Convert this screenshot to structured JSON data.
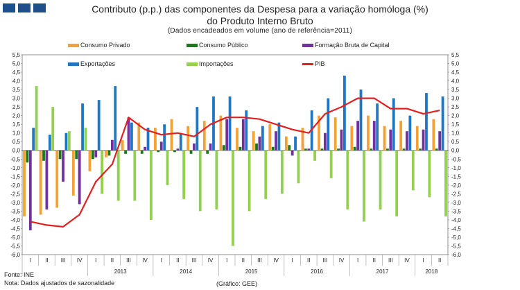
{
  "header": {
    "title_line1": "Contributo (p.p.) das componentes da Despesa para a variação homóloga (%)",
    "title_line2": "do Produto Interno Bruto",
    "subtitle": "(Dados encadeados em volume (ano de referência=2011)"
  },
  "footer": {
    "source": "Fonte: INE",
    "note": "Nota: Dados ajustados de sazonalidade",
    "chart_credit": "(Gráfico: GEE)"
  },
  "chart_data": {
    "type": "bar",
    "title": "Contributo (p.p.) das componentes da Despesa para a variação homóloga (%)",
    "ylim": [
      -6.0,
      5.5
    ],
    "ytick_step": 0.5,
    "quarter_labels": [
      "I",
      "II",
      "III",
      "IV",
      "I",
      "II",
      "III",
      "IV",
      "I",
      "II",
      "III",
      "IV",
      "I",
      "II",
      "III",
      "IV",
      "I",
      "II",
      "III",
      "IV",
      "I",
      "II",
      "III",
      "IV",
      "I",
      "II"
    ],
    "year_labels": [
      {
        "label": "2013",
        "start": 4,
        "end": 7
      },
      {
        "label": "2014",
        "start": 8,
        "end": 11
      },
      {
        "label": "2015",
        "start": 12,
        "end": 15
      },
      {
        "label": "2016",
        "start": 16,
        "end": 19
      },
      {
        "label": "2017",
        "start": 20,
        "end": 23
      },
      {
        "label": "2018",
        "start": 24,
        "end": 25
      }
    ],
    "series": [
      {
        "name": "Consumo Privado",
        "kind": "bar",
        "color": "#f4a136",
        "values": [
          -3.8,
          -3.7,
          -3.3,
          -2.6,
          -1.2,
          -0.4,
          0.6,
          1.6,
          1.3,
          1.8,
          1.4,
          1.7,
          2.0,
          1.3,
          1.1,
          1.5,
          0.8,
          1.3,
          2.0,
          1.9,
          1.4,
          2.0,
          1.4,
          1.7,
          1.4,
          1.8
        ]
      },
      {
        "name": "Consumo Público",
        "kind": "bar",
        "color": "#1a7a1a",
        "values": [
          -0.7,
          -0.6,
          -0.5,
          -0.5,
          -0.5,
          -0.3,
          -0.2,
          -0.2,
          -0.1,
          -0.1,
          -0.2,
          -0.2,
          0.3,
          0.2,
          0.4,
          0.2,
          0.3,
          0.1,
          0.1,
          0.1,
          0.2,
          0.1,
          0.1,
          0.1,
          0.1,
          0.1
        ]
      },
      {
        "name": "Formação Bruta de Capital",
        "kind": "bar",
        "color": "#7030a0",
        "values": [
          -4.6,
          -3.4,
          -1.8,
          -3.1,
          -0.4,
          0.6,
          1.9,
          0.2,
          0.5,
          0.1,
          0.4,
          0.4,
          1.8,
          1.8,
          0.8,
          1.1,
          -0.3,
          0.1,
          1.0,
          1.2,
          1.7,
          1.7,
          1.2,
          1.1,
          1.2,
          1.1
        ]
      },
      {
        "name": "Exportações",
        "kind": "bar",
        "color": "#1f77c4",
        "values": [
          1.3,
          0.9,
          1.0,
          2.7,
          2.9,
          3.7,
          1.6,
          1.3,
          1.5,
          1.0,
          2.5,
          3.1,
          3.1,
          2.3,
          1.4,
          1.6,
          0.8,
          2.3,
          3.0,
          4.3,
          3.5,
          2.7,
          3.0,
          2.0,
          3.3,
          3.1
        ]
      },
      {
        "name": "Importações",
        "kind": "bar",
        "color": "#92d050",
        "values": [
          3.7,
          2.5,
          1.1,
          1.3,
          -2.5,
          -2.9,
          -2.9,
          -4.0,
          -2.0,
          -2.8,
          -3.5,
          -3.4,
          -5.5,
          -3.5,
          -2.8,
          -2.5,
          -1.9,
          -0.6,
          -1.6,
          -3.4,
          -4.1,
          -3.4,
          -3.8,
          -2.3,
          -2.7,
          -3.8
        ]
      },
      {
        "name": "PIB",
        "kind": "line",
        "color": "#e02020",
        "values": [
          -4.1,
          -4.3,
          -4.4,
          -3.7,
          -1.8,
          -0.8,
          1.9,
          1.2,
          0.9,
          1.0,
          0.8,
          1.5,
          1.9,
          1.9,
          1.8,
          1.5,
          1.2,
          1.0,
          2.1,
          2.5,
          3.0,
          3.0,
          2.4,
          2.4,
          2.1,
          2.3
        ]
      }
    ]
  }
}
